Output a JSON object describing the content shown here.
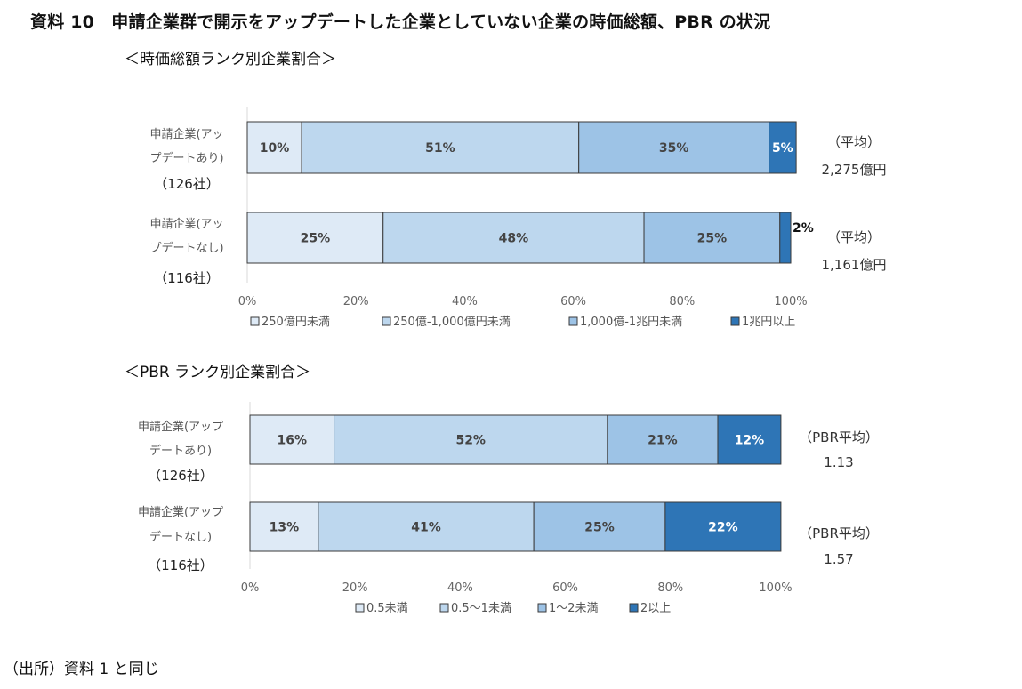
{
  "page": {
    "title": "資料 10　申請企業群で開示をアップデートした企業としていない企業の時価総額、PBR の状況",
    "source": "（出所）資料 1 と同じ"
  },
  "colors": [
    "#deeaf6",
    "#bdd7ee",
    "#9dc3e6",
    "#2e75b6"
  ],
  "chart_data": [
    {
      "type": "bar",
      "orientation": "horizontal",
      "stacked": true,
      "percent": true,
      "subtitle": "＜時価総額ランク別企業割合＞",
      "categories": [
        {
          "lines": [
            "申請企業(アッ",
            "プデートあり)"
          ],
          "count": "（126社）"
        },
        {
          "lines": [
            "申請企業(アッ",
            "プデートなし)"
          ],
          "count": "（116社）"
        }
      ],
      "series": [
        {
          "name": "250億円未満",
          "values": [
            10,
            25
          ],
          "labels": [
            "10%",
            "25%"
          ]
        },
        {
          "name": "250億-1,000億円未満",
          "values": [
            51,
            48
          ],
          "labels": [
            "51%",
            "48%"
          ]
        },
        {
          "name": "1,000億-1兆円未満",
          "values": [
            35,
            25
          ],
          "labels": [
            "35%",
            "25%"
          ]
        },
        {
          "name": "1兆円以上",
          "values": [
            5,
            2
          ],
          "labels": [
            "5%",
            "2%"
          ]
        }
      ],
      "xticks": [
        "0%",
        "20%",
        "40%",
        "60%",
        "80%",
        "100%"
      ],
      "xlim": [
        0,
        100
      ],
      "legend": "bottom",
      "side_notes": [
        {
          "label": "（平均）",
          "value": "2,275億円"
        },
        {
          "label": "（平均）",
          "value": "1,161億円"
        }
      ]
    },
    {
      "type": "bar",
      "orientation": "horizontal",
      "stacked": true,
      "percent": true,
      "subtitle": "＜PBR ランク別企業割合＞",
      "categories": [
        {
          "lines": [
            "申請企業(アップ",
            "デートあり)"
          ],
          "count": "（126社）"
        },
        {
          "lines": [
            "申請企業(アップ",
            "デートなし)"
          ],
          "count": "（116社）"
        }
      ],
      "series": [
        {
          "name": "0.5未満",
          "values": [
            16,
            13
          ],
          "labels": [
            "16%",
            "13%"
          ]
        },
        {
          "name": "0.5～1未満",
          "values": [
            52,
            41
          ],
          "labels": [
            "52%",
            "41%"
          ]
        },
        {
          "name": "1～2未満",
          "values": [
            21,
            25
          ],
          "labels": [
            "21%",
            "25%"
          ]
        },
        {
          "name": "2以上",
          "values": [
            12,
            22
          ],
          "labels": [
            "12%",
            "22%"
          ]
        }
      ],
      "xticks": [
        "0%",
        "20%",
        "40%",
        "60%",
        "80%",
        "100%"
      ],
      "xlim": [
        0,
        100
      ],
      "legend": "bottom",
      "side_notes": [
        {
          "label": "（PBR平均）",
          "value": "1.13"
        },
        {
          "label": "（PBR平均）",
          "value": "1.57"
        }
      ]
    }
  ]
}
